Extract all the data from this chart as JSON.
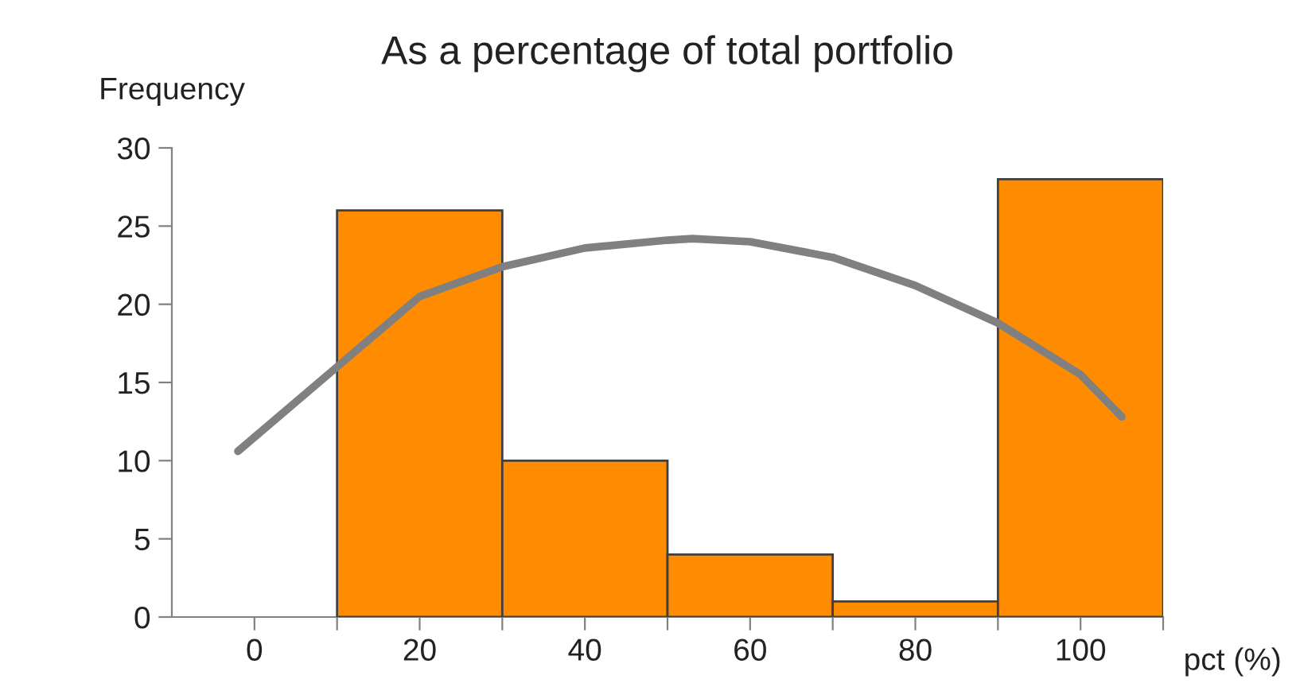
{
  "chart_data": {
    "type": "histogram",
    "title": "As a percentage of total portfolio",
    "ylabel": "Frequency",
    "xlabel": "pct (%)",
    "series": [
      {
        "bins": [
          -10,
          10,
          30,
          50,
          70,
          90,
          110
        ],
        "values": [
          0,
          26,
          10,
          4,
          1,
          28
        ],
        "color": "#ff8c00"
      },
      {
        "type": "line",
        "x": [
          -2,
          10,
          20,
          30,
          40,
          50,
          53,
          60,
          70,
          80,
          90,
          100,
          105
        ],
        "values": [
          10.6,
          16.0,
          20.5,
          22.4,
          23.6,
          24.1,
          24.2,
          24.0,
          23.0,
          21.2,
          18.8,
          15.5,
          12.8
        ],
        "color": "#808080"
      }
    ],
    "xlim": [
      -10,
      110
    ],
    "xticks": [
      0,
      20,
      40,
      60,
      80,
      100,
      {
        "value": 10,
        "label": null
      },
      {
        "value": 30,
        "label": null
      },
      {
        "value": 50,
        "label": null
      },
      {
        "value": 70,
        "label": null
      },
      {
        "value": 90,
        "label": null
      },
      {
        "value": 110,
        "label": null
      }
    ],
    "ylim": [
      0,
      30
    ],
    "yticks": [
      0,
      5,
      10,
      15,
      20,
      25,
      30
    ],
    "grid": false,
    "legend": false
  }
}
